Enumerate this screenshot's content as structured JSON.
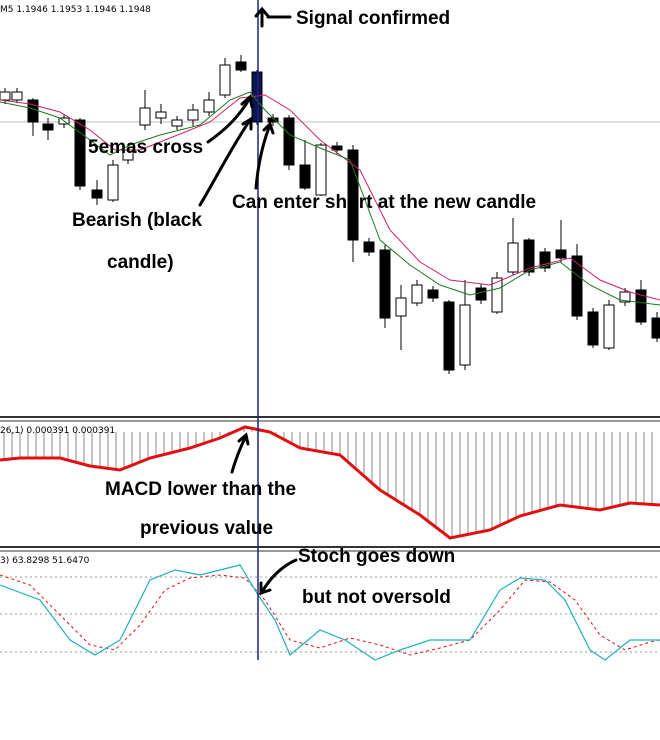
{
  "header": {
    "price_label": "M5 1.1946 1.1953 1.1946 1.1948"
  },
  "macd_panel": {
    "label": "26,1) 0.000391 0.000391"
  },
  "stoch_panel": {
    "label": "3) 63.8298 51.6470"
  },
  "annotations": {
    "signal": "Signal confirmed",
    "cross": "5emas cross",
    "bearish_1": "Bearish (black",
    "bearish_2": "candle)",
    "enter": "Can enter short at the new candle",
    "macd_1": "MACD lower than the",
    "macd_2": "previous value",
    "stoch_1": "Stoch goes down",
    "stoch_2": "but not oversold"
  }
}
